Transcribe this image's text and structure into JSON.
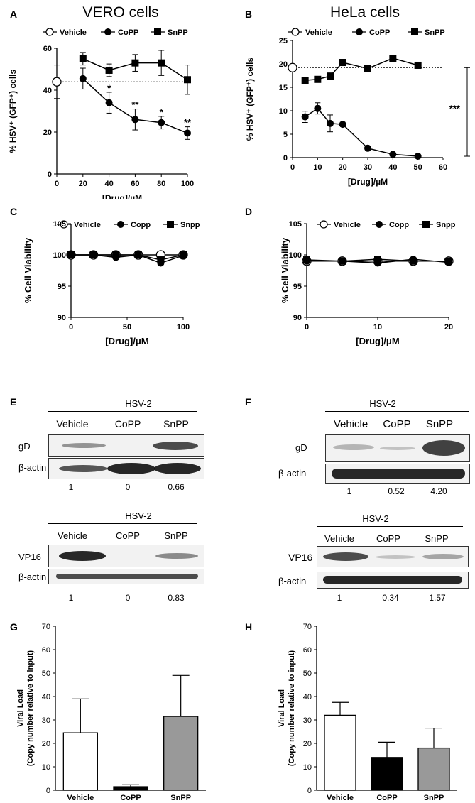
{
  "figure": {
    "panels": {
      "A": {
        "label": "A",
        "title": "VERO cells"
      },
      "B": {
        "label": "B",
        "title": "HeLa cells"
      },
      "C": {
        "label": "C"
      },
      "D": {
        "label": "D"
      },
      "E": {
        "label": "E"
      },
      "F": {
        "label": "F"
      },
      "G": {
        "label": "G"
      },
      "H": {
        "label": "H"
      }
    },
    "legend_AB": [
      "Vehicle",
      "CoPP",
      "SnPP"
    ],
    "legend_CD": [
      "Vehicle",
      "Copp",
      "Snpp"
    ],
    "blots": {
      "E_top": {
        "title": "HSV-2",
        "lanes": [
          "Vehicle",
          "CoPP",
          "SnPP"
        ],
        "rows": [
          "gD",
          "β-actin"
        ],
        "quant": [
          "1",
          "0",
          "0.66"
        ]
      },
      "E_bottom": {
        "title": "HSV-2",
        "lanes": [
          "Vehicle",
          "CoPP",
          "SnPP"
        ],
        "rows": [
          "VP16",
          "β-actin"
        ],
        "quant": [
          "1",
          "0",
          "0.83"
        ]
      },
      "F_top": {
        "title": "HSV-2",
        "lanes": [
          "Vehicle",
          "CoPP",
          "SnPP"
        ],
        "rows": [
          "gD",
          "β-actin"
        ],
        "quant": [
          "1",
          "0.52",
          "4.20"
        ]
      },
      "F_bottom": {
        "title": "HSV-2",
        "lanes": [
          "Vehicle",
          "CoPP",
          "SnPP"
        ],
        "rows": [
          "VP16",
          "β-actin"
        ],
        "quant": [
          "1",
          "0.34",
          "1.57"
        ]
      }
    }
  },
  "chart_data": [
    {
      "id": "A",
      "type": "line",
      "title": "VERO cells",
      "xlabel": "[Drug]/µM",
      "ylabel": "% HSV⁺ (GFP⁺) cells",
      "xlim": [
        0,
        100
      ],
      "ylim": [
        0,
        60
      ],
      "xticks": [
        0,
        20,
        40,
        60,
        80,
        100
      ],
      "yticks": [
        0,
        20,
        40,
        60
      ],
      "reference_line": 44,
      "series": [
        {
          "name": "Vehicle",
          "marker": "circle-open",
          "x": [
            0
          ],
          "y": [
            44
          ],
          "err": [
            8
          ]
        },
        {
          "name": "CoPP",
          "marker": "circle",
          "x": [
            20,
            40,
            60,
            80,
            100
          ],
          "y": [
            45.5,
            34,
            26,
            24.5,
            19.5
          ],
          "err": [
            5,
            5,
            5,
            3,
            3
          ]
        },
        {
          "name": "SnPP",
          "marker": "square",
          "x": [
            20,
            40,
            60,
            80,
            100
          ],
          "y": [
            55,
            49.5,
            53,
            53,
            45
          ],
          "err": [
            3,
            3,
            4,
            6,
            7
          ]
        }
      ],
      "annotations": [
        {
          "x": 40,
          "y": 39.5,
          "text": "*"
        },
        {
          "x": 60,
          "y": 31.5,
          "text": "**"
        },
        {
          "x": 80,
          "y": 28,
          "text": "*"
        },
        {
          "x": 100,
          "y": 23,
          "text": "**"
        }
      ]
    },
    {
      "id": "B",
      "type": "line",
      "title": "HeLa cells",
      "xlabel": "[Drug]/µM",
      "ylabel": "% HSV⁺ (GFP⁺) cells",
      "xlim": [
        0,
        60
      ],
      "ylim": [
        0,
        25
      ],
      "xticks": [
        0,
        10,
        20,
        30,
        40,
        50,
        60
      ],
      "yticks": [
        0,
        5,
        10,
        15,
        20,
        25
      ],
      "reference_line": 19.2,
      "series": [
        {
          "name": "Vehicle",
          "marker": "circle-open",
          "x": [
            0
          ],
          "y": [
            19.2
          ],
          "err": [
            0
          ]
        },
        {
          "name": "CoPP",
          "marker": "circle",
          "x": [
            5,
            10,
            15,
            20,
            30,
            40,
            50
          ],
          "y": [
            8.7,
            10.5,
            7.3,
            7.1,
            2.0,
            0.7,
            0.3
          ],
          "err": [
            1.2,
            1.2,
            1.8,
            0,
            0,
            0,
            0
          ]
        },
        {
          "name": "SnPP",
          "marker": "square",
          "x": [
            5,
            10,
            15,
            20,
            30,
            40,
            50
          ],
          "y": [
            16.5,
            16.7,
            17.4,
            20.3,
            19.0,
            21.2,
            19.7
          ],
          "err": [
            0,
            0,
            0,
            0,
            0,
            0,
            0
          ]
        }
      ],
      "annotations": [
        {
          "text": "***"
        }
      ]
    },
    {
      "id": "C",
      "type": "line",
      "xlabel": "[Drug]/μM",
      "ylabel": "% Cell Viability",
      "xlim": [
        0,
        100
      ],
      "ylim": [
        90,
        105
      ],
      "xticks": [
        0,
        50,
        100
      ],
      "yticks": [
        90,
        95,
        100,
        105
      ],
      "series": [
        {
          "name": "Vehicle",
          "marker": "circle-open",
          "x": [
            0,
            20,
            40,
            60,
            80,
            100
          ],
          "y": [
            100,
            100,
            100,
            100,
            100,
            100
          ]
        },
        {
          "name": "Copp",
          "marker": "circle",
          "x": [
            0,
            20,
            40,
            60,
            80,
            100
          ],
          "y": [
            100,
            100,
            99.6,
            100,
            98.7,
            99.9
          ]
        },
        {
          "name": "Snpp",
          "marker": "square",
          "x": [
            0,
            20,
            40,
            60,
            80,
            100
          ],
          "y": [
            100,
            100,
            100,
            100,
            99.2,
            100
          ]
        }
      ]
    },
    {
      "id": "D",
      "type": "line",
      "xlabel": "[Drug]/μM",
      "ylabel": "% Cell Viability",
      "xlim": [
        0,
        20
      ],
      "ylim": [
        90,
        105
      ],
      "xticks": [
        0,
        10,
        20
      ],
      "yticks": [
        90,
        95,
        100,
        105
      ],
      "series": [
        {
          "name": "Vehicle",
          "marker": "circle-open",
          "x": [
            0,
            5,
            10,
            15,
            20
          ],
          "y": [
            99,
            99,
            99,
            99,
            99
          ]
        },
        {
          "name": "Copp",
          "marker": "circle",
          "x": [
            0,
            5,
            10,
            15,
            20
          ],
          "y": [
            99,
            99,
            98.7,
            99.3,
            98.8
          ]
        },
        {
          "name": "Snpp",
          "marker": "square",
          "x": [
            0,
            5,
            10,
            15,
            20
          ],
          "y": [
            99.2,
            99,
            99.3,
            99,
            99
          ]
        }
      ]
    },
    {
      "id": "G",
      "type": "bar",
      "ylabel": "Viral Load\n(Copy number relative to input)",
      "categories": [
        "Vehicle",
        "CoPP",
        "SnPP"
      ],
      "values": [
        24.5,
        1.5,
        31.5
      ],
      "errors": [
        14.5,
        0.8,
        17.5
      ],
      "colors": [
        "#ffffff",
        "#000000",
        "#999999"
      ],
      "ylim": [
        0,
        70
      ],
      "yticks": [
        0,
        10,
        20,
        30,
        40,
        50,
        60,
        70
      ]
    },
    {
      "id": "H",
      "type": "bar",
      "ylabel": "Viral Load\n(Copy number relative to input)",
      "categories": [
        "Vehicle",
        "CoPP",
        "SnPP"
      ],
      "values": [
        32,
        14,
        18
      ],
      "errors": [
        5.5,
        6.5,
        8.5
      ],
      "colors": [
        "#ffffff",
        "#000000",
        "#999999"
      ],
      "ylim": [
        0,
        70
      ],
      "yticks": [
        0,
        10,
        20,
        30,
        40,
        50,
        60,
        70
      ]
    }
  ]
}
